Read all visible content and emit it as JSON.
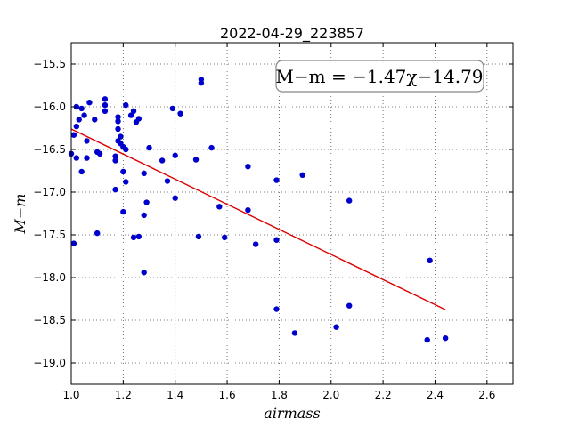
{
  "chart_data": {
    "type": "scatter",
    "title": "2022-04-29_223857",
    "xlabel": "airmass",
    "ylabel": "M−m",
    "xlim": [
      1.0,
      2.7
    ],
    "ylim": [
      -15.25,
      -19.25
    ],
    "y_inverted": true,
    "grid": true,
    "x_ticks": [
      1.0,
      1.2,
      1.4,
      1.6,
      1.8,
      2.0,
      2.2,
      2.4,
      2.6
    ],
    "x_tick_labels": [
      "1.0",
      "1.2",
      "1.4",
      "1.6",
      "1.8",
      "2.0",
      "2.2",
      "2.4",
      "2.6"
    ],
    "y_ticks": [
      -15.5,
      -16.0,
      -16.5,
      -17.0,
      -17.5,
      -18.0,
      -18.5,
      -19.0
    ],
    "y_tick_labels": [
      "−15.5",
      "−16.0",
      "−16.5",
      "−17.0",
      "−17.5",
      "−18.0",
      "−18.5",
      "−19.0"
    ],
    "annotation": "M−m = −1.47χ−14.79",
    "colors": {
      "points": "#0000cc",
      "fit_line": "#dd0000",
      "grid": "#555555"
    },
    "points": [
      [
        1.0,
        -16.55
      ],
      [
        1.01,
        -16.33
      ],
      [
        1.01,
        -17.6
      ],
      [
        1.02,
        -16.6
      ],
      [
        1.02,
        -16.0
      ],
      [
        1.02,
        -16.23
      ],
      [
        1.03,
        -16.15
      ],
      [
        1.04,
        -16.02
      ],
      [
        1.04,
        -16.76
      ],
      [
        1.05,
        -16.1
      ],
      [
        1.06,
        -16.4
      ],
      [
        1.06,
        -16.6
      ],
      [
        1.07,
        -15.95
      ],
      [
        1.09,
        -16.15
      ],
      [
        1.1,
        -16.53
      ],
      [
        1.1,
        -17.48
      ],
      [
        1.11,
        -16.55
      ],
      [
        1.13,
        -15.98
      ],
      [
        1.13,
        -16.05
      ],
      [
        1.13,
        -15.91
      ],
      [
        1.17,
        -16.58
      ],
      [
        1.17,
        -16.63
      ],
      [
        1.17,
        -16.97
      ],
      [
        1.18,
        -16.17
      ],
      [
        1.18,
        -16.26
      ],
      [
        1.18,
        -16.4
      ],
      [
        1.18,
        -16.12
      ],
      [
        1.19,
        -16.35
      ],
      [
        1.19,
        -16.43
      ],
      [
        1.2,
        -16.76
      ],
      [
        1.2,
        -17.23
      ],
      [
        1.2,
        -16.47
      ],
      [
        1.21,
        -15.98
      ],
      [
        1.21,
        -16.5
      ],
      [
        1.21,
        -16.88
      ],
      [
        1.23,
        -16.1
      ],
      [
        1.24,
        -17.53
      ],
      [
        1.24,
        -16.05
      ],
      [
        1.25,
        -16.18
      ],
      [
        1.26,
        -17.52
      ],
      [
        1.26,
        -16.14
      ],
      [
        1.28,
        -16.78
      ],
      [
        1.28,
        -17.27
      ],
      [
        1.28,
        -17.94
      ],
      [
        1.29,
        -17.12
      ],
      [
        1.3,
        -16.48
      ],
      [
        1.35,
        -16.63
      ],
      [
        1.37,
        -16.87
      ],
      [
        1.39,
        -16.02
      ],
      [
        1.4,
        -16.57
      ],
      [
        1.4,
        -17.07
      ],
      [
        1.42,
        -16.08
      ],
      [
        1.48,
        -16.62
      ],
      [
        1.49,
        -17.52
      ],
      [
        1.5,
        -15.68
      ],
      [
        1.5,
        -15.72
      ],
      [
        1.54,
        -16.48
      ],
      [
        1.57,
        -17.17
      ],
      [
        1.59,
        -17.53
      ],
      [
        1.68,
        -16.7
      ],
      [
        1.68,
        -17.21
      ],
      [
        1.71,
        -17.61
      ],
      [
        1.79,
        -16.86
      ],
      [
        1.79,
        -17.56
      ],
      [
        1.79,
        -18.37
      ],
      [
        1.86,
        -18.65
      ],
      [
        1.89,
        -16.8
      ],
      [
        2.02,
        -18.58
      ],
      [
        2.07,
        -17.1
      ],
      [
        2.07,
        -18.33
      ],
      [
        2.37,
        -18.73
      ],
      [
        2.38,
        -17.8
      ],
      [
        2.44,
        -18.71
      ]
    ],
    "fit_line": {
      "slope": -1.47,
      "intercept": -14.79,
      "x_range": [
        1.0,
        2.44
      ]
    }
  }
}
